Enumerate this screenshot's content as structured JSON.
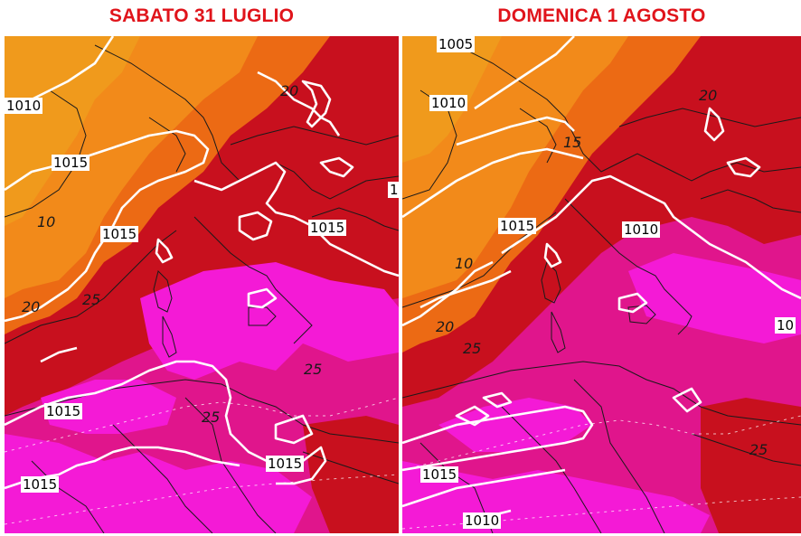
{
  "panels": [
    {
      "title": "SABATO 31 LUGLIO",
      "pressure_labels": [
        "1010",
        "1015",
        "1015",
        "1015",
        "1015",
        "1015",
        "1015",
        "1"
      ],
      "temperature_labels": [
        "20",
        "10",
        "25",
        "20",
        "25",
        "25"
      ]
    },
    {
      "title": "DOMENICA 1 AGOSTO",
      "pressure_labels": [
        "1005",
        "1010",
        "1015",
        "1010",
        "10",
        "1015",
        "1010"
      ],
      "temperature_labels": [
        "20",
        "15",
        "10",
        "20",
        "25",
        "25"
      ]
    }
  ],
  "colors": {
    "title_text": "#e0141b",
    "isobar": "#ffffff",
    "temp_5_10": "#f09a1c",
    "temp_10_15": "#f28a1a",
    "temp_15_20": "#ec6a14",
    "temp_20_25": "#c8101e",
    "temp_25_30": "#c8145a",
    "temp_25_30_deep": "#e0158c",
    "temp_30_plus": "#f41ad6",
    "coastline": "#1a1a1a"
  }
}
